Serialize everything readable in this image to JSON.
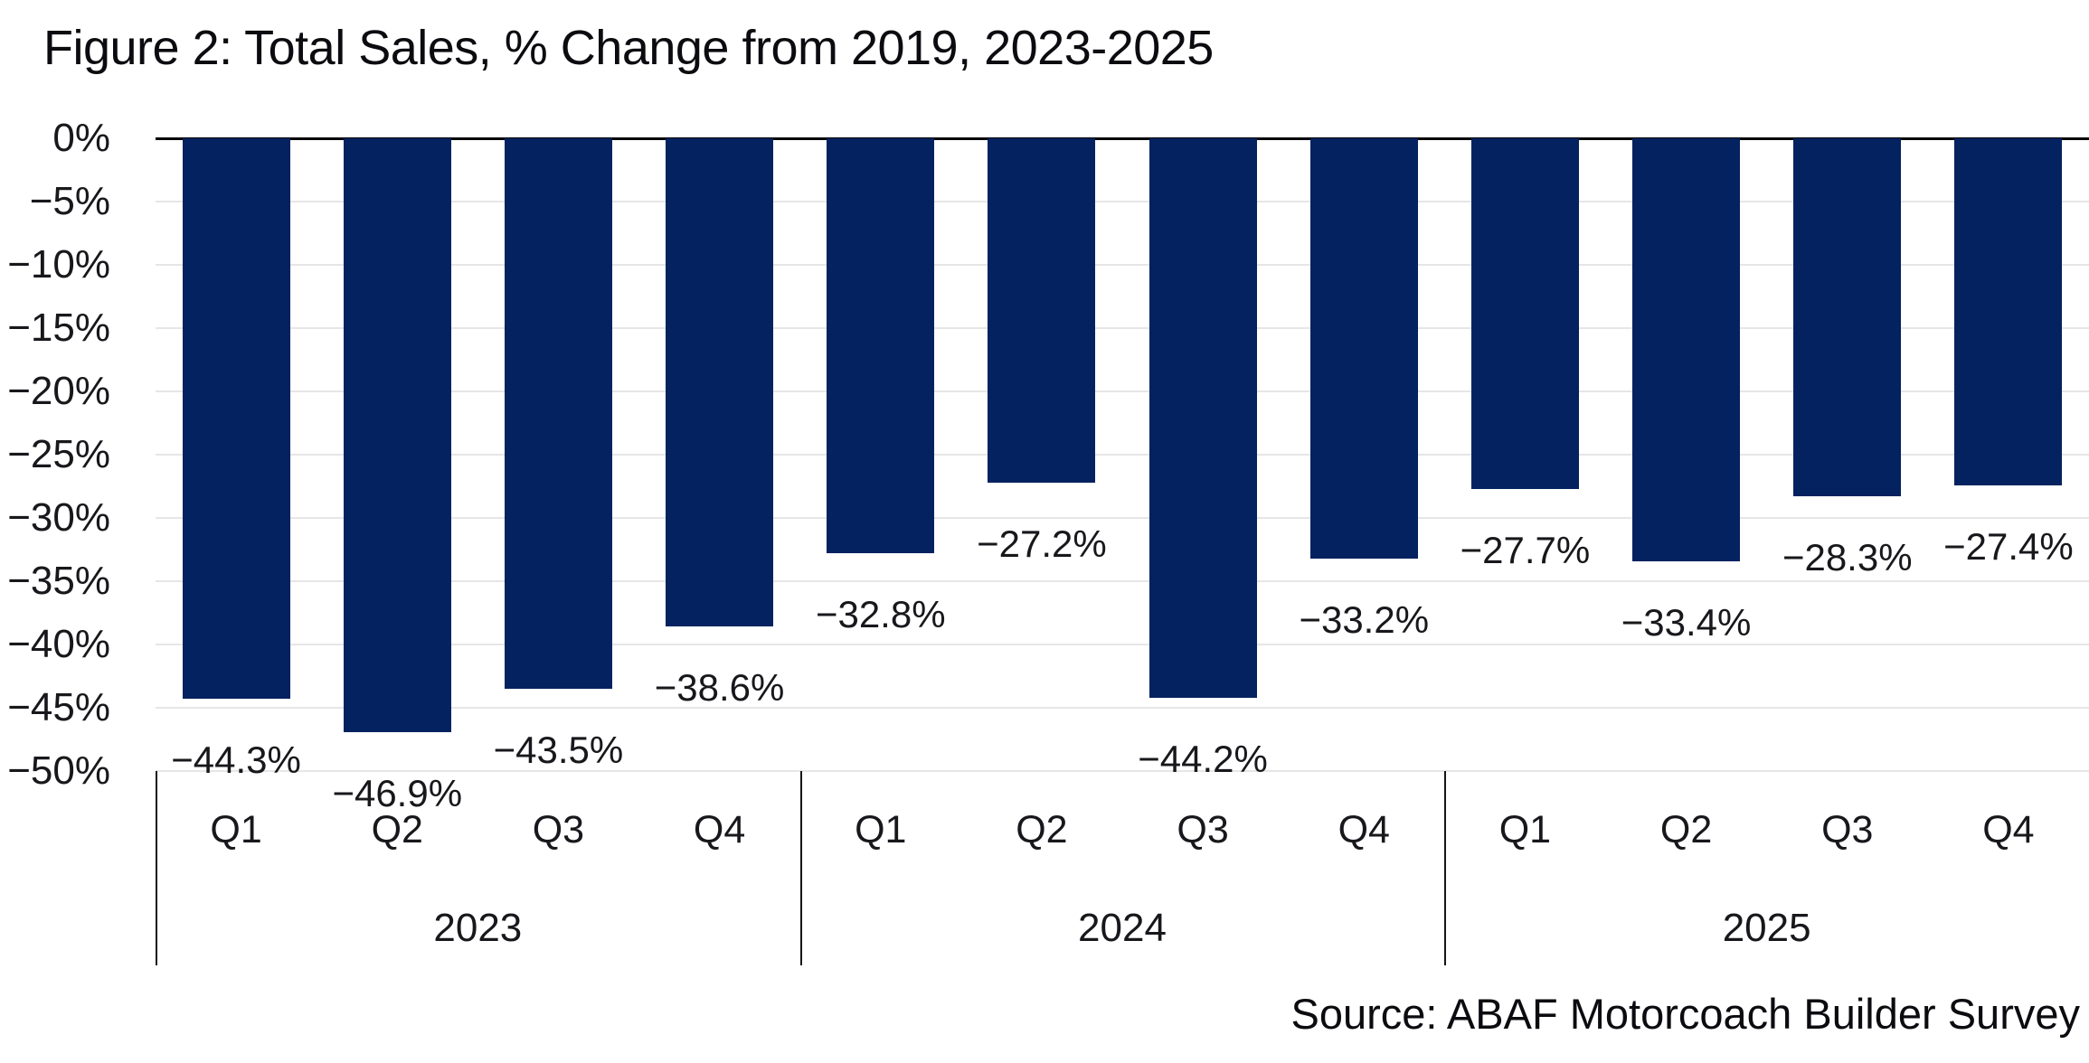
{
  "title": "Figure 2: Total Sales, % Change from 2019, 2023-2025",
  "source": "Source: ABAF Motorcoach Builder Survey",
  "colors": {
    "bar": "#03225F",
    "gridline": "#e6e6e6",
    "zero_line": "#000000",
    "year_separator": "#151518",
    "text": "#18181c"
  },
  "chart_data": {
    "type": "bar",
    "title": "Figure 2: Total Sales, % Change from 2019, 2023-2025",
    "xlabel": "",
    "ylabel": "",
    "ylim": [
      -50,
      0
    ],
    "grid": true,
    "legend": false,
    "bar_color": "#03225F",
    "y_axis": {
      "tick_labels": [
        "0%",
        "−5%",
        "−10%",
        "−15%",
        "−20%",
        "−25%",
        "−30%",
        "−35%",
        "−40%",
        "−45%",
        "−50%"
      ],
      "tick_values": [
        0,
        -5,
        -10,
        -15,
        -20,
        -25,
        -30,
        -35,
        -40,
        -45,
        -50
      ]
    },
    "groups": [
      {
        "year": "2023",
        "categories": [
          "Q1",
          "Q2",
          "Q3",
          "Q4"
        ],
        "values": [
          -44.3,
          -46.9,
          -43.5,
          -38.6
        ],
        "data_labels": [
          "−44.3%",
          "−46.9%",
          "−43.5%",
          "−38.6%"
        ]
      },
      {
        "year": "2024",
        "categories": [
          "Q1",
          "Q2",
          "Q3",
          "Q4"
        ],
        "values": [
          -32.8,
          -27.2,
          -44.2,
          -33.2
        ],
        "data_labels": [
          "−32.8%",
          "−27.2%",
          "−44.2%",
          "−33.2%"
        ]
      },
      {
        "year": "2025",
        "categories": [
          "Q1",
          "Q2",
          "Q3",
          "Q4"
        ],
        "values": [
          -27.7,
          -33.4,
          -28.3,
          -27.4
        ],
        "data_labels": [
          "−27.7%",
          "−33.4%",
          "−28.3%",
          "−27.4%"
        ]
      }
    ],
    "source": "Source: ABAF Motorcoach Builder Survey"
  }
}
